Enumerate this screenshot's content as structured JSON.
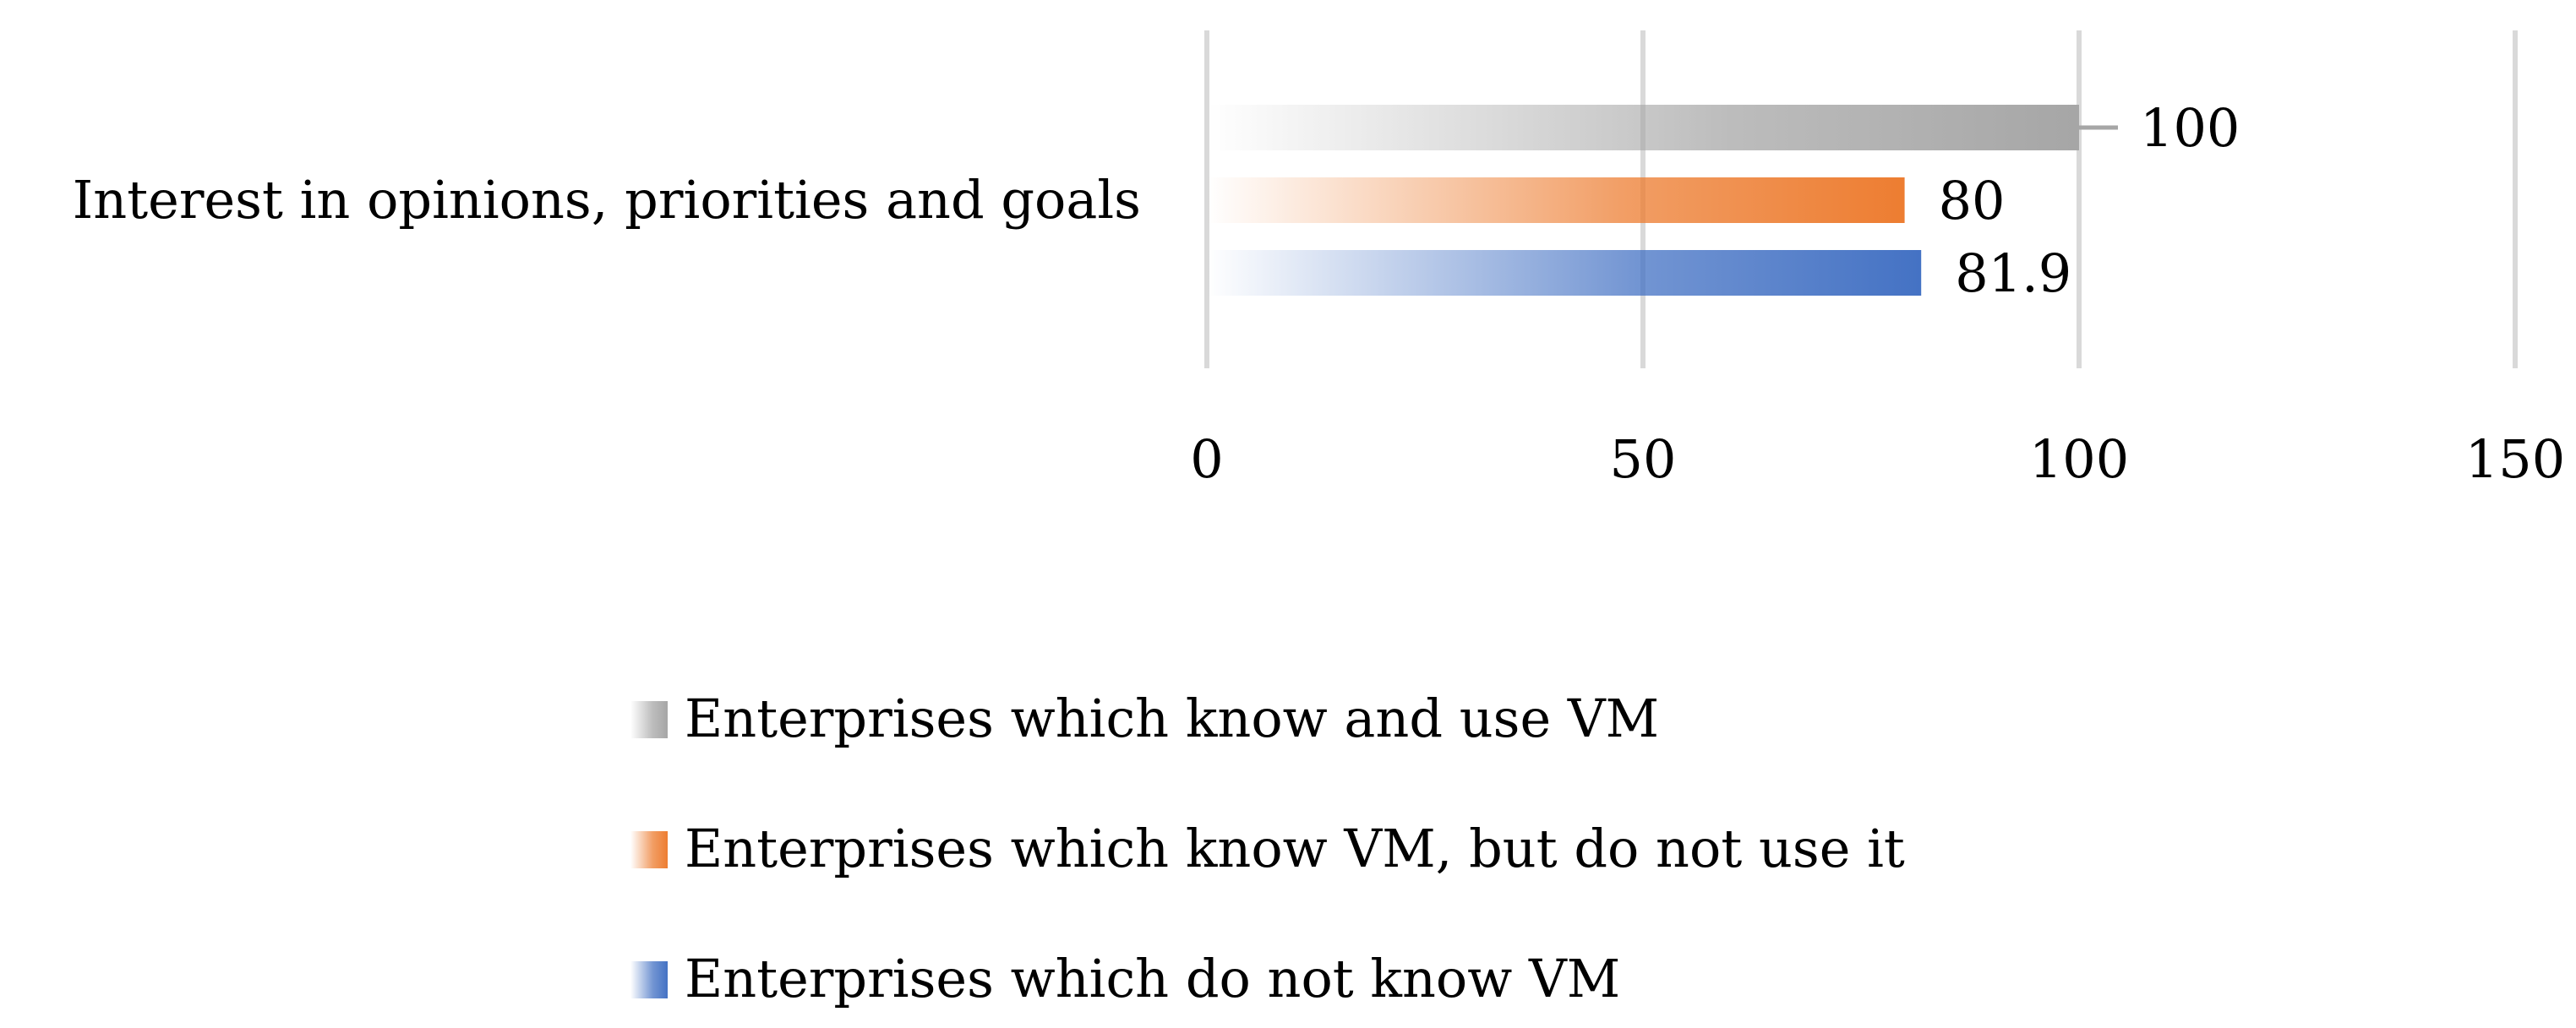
{
  "chart_data": {
    "type": "bar",
    "orientation": "horizontal",
    "categories": [
      "Interest in opinions, priorities and goals"
    ],
    "series": [
      {
        "name": "Enterprises which know and use VM",
        "values": [
          100
        ],
        "color": "#a6a6a6",
        "value_label": "100"
      },
      {
        "name": "Enterprises which know VM, but do not use it",
        "values": [
          80
        ],
        "color": "#ed7d31",
        "value_label": "80"
      },
      {
        "name": "Enterprises which do not know VM",
        "values": [
          81.9
        ],
        "color": "#4472c4",
        "value_label": "81.9"
      }
    ],
    "xlim": [
      0,
      150
    ],
    "x_ticks": [
      0,
      50,
      100,
      150
    ],
    "x_tick_labels": [
      "0",
      "50",
      "100",
      "150"
    ],
    "grid": true,
    "bar_style": "gradient-fade-from-left",
    "legend": {
      "position": "bottom",
      "orientation": "vertical"
    },
    "title": "",
    "xlabel": "",
    "ylabel": ""
  }
}
